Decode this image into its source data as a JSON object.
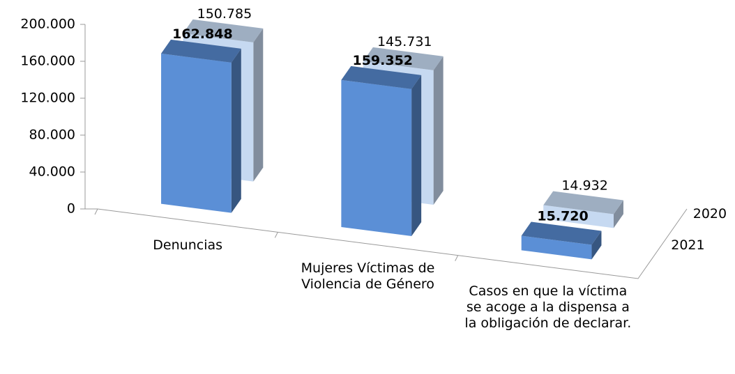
{
  "chart_data": {
    "type": "bar3d",
    "categories": [
      "Denuncias",
      "Mujeres Víctimas de Violencia de Género",
      "Casos en que la víctima se acoge a la dispensa a la obligación de declarar."
    ],
    "series": [
      {
        "name": "2021",
        "color": "#5b8fd6",
        "values": [
          162848,
          159352,
          15720
        ],
        "value_labels": [
          "162.848",
          "159.352",
          "15.720"
        ]
      },
      {
        "name": "2020",
        "color": "#c6d9f1",
        "values": [
          150785,
          145731,
          14932
        ],
        "value_labels": [
          "150.785",
          "145.731",
          "14.932"
        ]
      }
    ],
    "ylim": [
      0,
      200000
    ],
    "yticks": [
      0,
      {
        "value": 40000,
        "label": "40.000"
      },
      {
        "value": 80000,
        "label": "80.000"
      },
      {
        "value": 120000,
        "label": "120.000"
      },
      {
        "value": 160000,
        "label": "160.000"
      },
      {
        "value": 200000,
        "label": "200.000"
      }
    ]
  }
}
